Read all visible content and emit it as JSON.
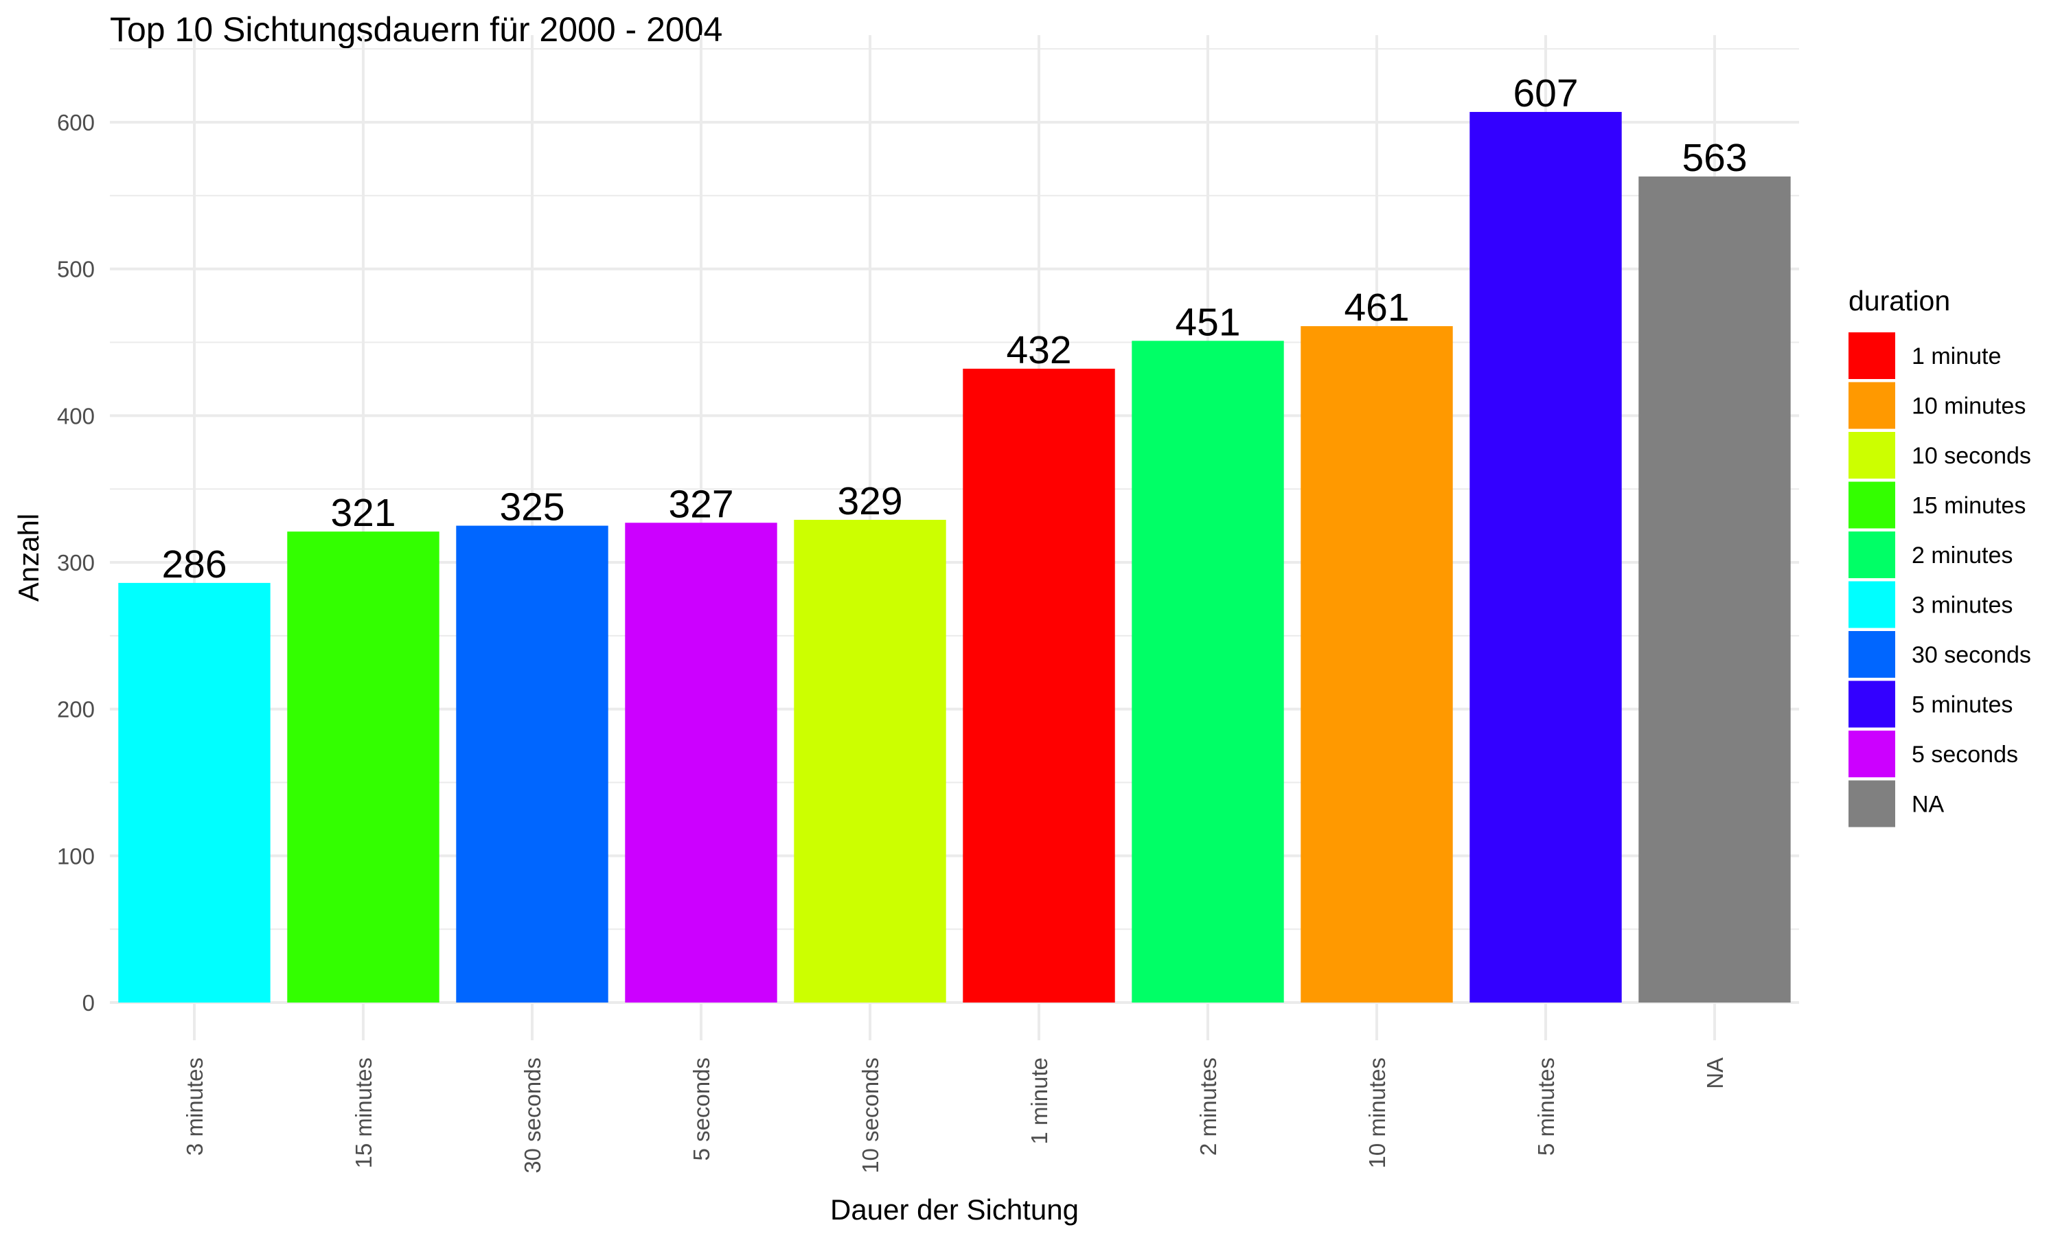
{
  "chart_data": {
    "type": "bar",
    "title": "Top 10 Sichtungsdauern für 2000 - 2004",
    "xlabel": "Dauer der Sichtung",
    "ylabel": "Anzahl",
    "categories": [
      "3 minutes",
      "15 minutes",
      "30 seconds",
      "5 seconds",
      "10 seconds",
      "1 minute",
      "2 minutes",
      "10 minutes",
      "5 minutes",
      "NA"
    ],
    "values": [
      286,
      321,
      325,
      327,
      329,
      432,
      451,
      461,
      607,
      563
    ],
    "bar_colors": [
      "#00FFFF",
      "#33FF00",
      "#0066FF",
      "#CC00FF",
      "#CCFF00",
      "#FF0000",
      "#00FF66",
      "#FF9900",
      "#3300FF",
      "#808080"
    ],
    "ylim": [
      0,
      650
    ],
    "yticks": [
      0,
      100,
      200,
      300,
      400,
      500,
      600
    ],
    "grid": true,
    "legend": {
      "title": "duration",
      "position": "right",
      "entries": [
        {
          "label": "1 minute",
          "color": "#FF0000"
        },
        {
          "label": "10 minutes",
          "color": "#FF9900"
        },
        {
          "label": "10 seconds",
          "color": "#CCFF00"
        },
        {
          "label": "15 minutes",
          "color": "#33FF00"
        },
        {
          "label": "2 minutes",
          "color": "#00FF66"
        },
        {
          "label": "3 minutes",
          "color": "#00FFFF"
        },
        {
          "label": "30 seconds",
          "color": "#0066FF"
        },
        {
          "label": "5 minutes",
          "color": "#3300FF"
        },
        {
          "label": "5 seconds",
          "color": "#CC00FF"
        },
        {
          "label": "NA",
          "color": "#808080"
        }
      ]
    }
  }
}
